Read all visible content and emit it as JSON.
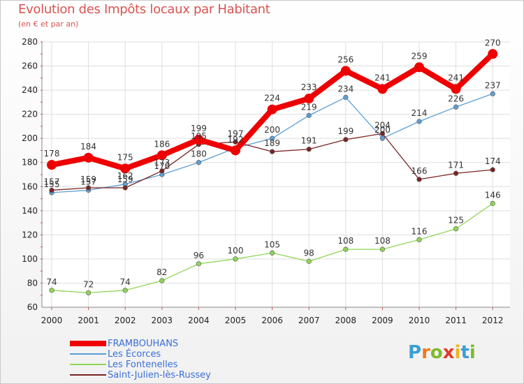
{
  "header": {
    "title": "Evolution des Impôts locaux par Habitant",
    "subtitle": "(en € et par an)"
  },
  "logo": {
    "letters": [
      "P",
      "r",
      "o",
      "x",
      "i",
      "t",
      "i"
    ],
    "colors": [
      "#3a9fd6",
      "#f07a1a",
      "#7dbb2a",
      "#e23b2a",
      "#f0b41a",
      "#3a9fd6",
      "#7dbb2a"
    ]
  },
  "chart_data": {
    "type": "line",
    "title": "Evolution des Impôts locaux par Habitant",
    "ylabel": "(en € et par an)",
    "xlabel": "",
    "ylim": [
      60,
      280
    ],
    "yticks": [
      60,
      80,
      100,
      120,
      140,
      160,
      180,
      200,
      220,
      240,
      260,
      280
    ],
    "categories": [
      "2000",
      "2001",
      "2002",
      "2003",
      "2004",
      "2005",
      "2006",
      "2007",
      "2008",
      "2009",
      "2010",
      "2011",
      "2012"
    ],
    "grid": true,
    "series": [
      {
        "name": "FRAMBOUHANS",
        "color": "#ee0000",
        "emphasis": true,
        "values": [
          178,
          184,
          175,
          186,
          199,
          190,
          224,
          233,
          256,
          241,
          259,
          241,
          270
        ],
        "labels": [
          "178",
          "184",
          "175",
          "186",
          "199",
          "",
          "224",
          "233",
          "256",
          "241",
          "259",
          "241",
          "270"
        ]
      },
      {
        "name": "Les Écorces",
        "color": "#5d9fd4",
        "emphasis": false,
        "values": [
          155,
          157,
          162,
          170,
          180,
          192,
          200,
          219,
          234,
          200,
          214,
          226,
          237
        ],
        "labels": [
          "155",
          "157",
          "162",
          "170",
          "180",
          "192",
          "200",
          "219",
          "234",
          "200",
          "214",
          "226",
          "237"
        ]
      },
      {
        "name": "Les Fontenelles",
        "color": "#8fd655",
        "emphasis": false,
        "values": [
          74,
          72,
          74,
          82,
          96,
          100,
          105,
          98,
          108,
          108,
          116,
          125,
          146
        ],
        "labels": [
          "74",
          "72",
          "74",
          "82",
          "96",
          "100",
          "105",
          "98",
          "108",
          "108",
          "116",
          "125",
          "146"
        ]
      },
      {
        "name": "Saint-Julien-lès-Russey",
        "color": "#7a2424",
        "emphasis": false,
        "values": [
          157,
          159,
          159,
          173,
          195,
          197,
          189,
          191,
          199,
          204,
          166,
          171,
          174
        ],
        "labels": [
          "157",
          "159",
          "159",
          "173",
          "195",
          "197",
          "189",
          "191",
          "199",
          "204",
          "166",
          "171",
          "174"
        ]
      }
    ]
  }
}
